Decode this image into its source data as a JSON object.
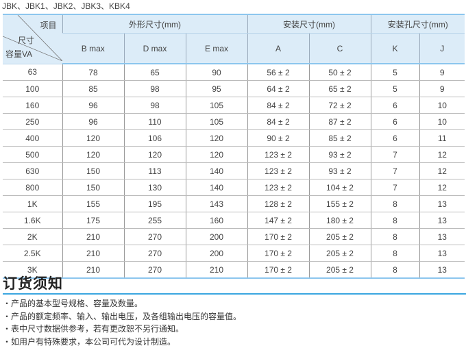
{
  "model_line": "JBK、JBK1、JBK2、JBK3、KBK4",
  "table": {
    "corner": {
      "item": "项目",
      "size": "尺寸",
      "capacity": "容量VA"
    },
    "groups": [
      "外形尺寸(mm)",
      "安装尺寸(mm)",
      "安装孔尺寸(mm)"
    ],
    "columns": [
      "B max",
      "D max",
      "E max",
      "A",
      "C",
      "K",
      "J"
    ],
    "rows": [
      [
        "63",
        "78",
        "65",
        "90",
        "56 ± 2",
        "50 ± 2",
        "5",
        "9"
      ],
      [
        "100",
        "85",
        "98",
        "95",
        "64 ± 2",
        "65 ± 2",
        "5",
        "9"
      ],
      [
        "160",
        "96",
        "98",
        "105",
        "84 ± 2",
        "72 ± 2",
        "6",
        "10"
      ],
      [
        "250",
        "96",
        "110",
        "105",
        "84 ± 2",
        "87 ± 2",
        "6",
        "10"
      ],
      [
        "400",
        "120",
        "106",
        "120",
        "90 ± 2",
        "85 ± 2",
        "6",
        "11"
      ],
      [
        "500",
        "120",
        "120",
        "120",
        "123 ± 2",
        "93 ± 2",
        "7",
        "12"
      ],
      [
        "630",
        "150",
        "113",
        "140",
        "123 ± 2",
        "93 ± 2",
        "7",
        "12"
      ],
      [
        "800",
        "150",
        "130",
        "140",
        "123 ± 2",
        "104 ± 2",
        "7",
        "12"
      ],
      [
        "1K",
        "155",
        "195",
        "143",
        "128 ± 2",
        "155 ± 2",
        "8",
        "13"
      ],
      [
        "1.6K",
        "175",
        "255",
        "160",
        "147 ± 2",
        "180 ± 2",
        "8",
        "13"
      ],
      [
        "2K",
        "210",
        "270",
        "200",
        "170 ± 2",
        "205 ± 2",
        "8",
        "13"
      ],
      [
        "2.5K",
        "210",
        "270",
        "200",
        "170 ± 2",
        "205 ± 2",
        "8",
        "13"
      ],
      [
        "3K",
        "210",
        "270",
        "210",
        "170 ± 2",
        "205 ± 2",
        "8",
        "13"
      ]
    ]
  },
  "notice": {
    "title": "订货须知",
    "items": [
      "・产品的基本型号规格、容量及数量。",
      "・产品的额定频率、输入、输出电压，及各组输出电压的容量值。",
      "・表中尺寸数据供参考，若有更改恕不另行通知。",
      "・如用户有特殊要求，本公司可代为设计制造。"
    ]
  },
  "colors": {
    "header_bg": "#dcecf8",
    "accent": "#3aa6e0"
  }
}
